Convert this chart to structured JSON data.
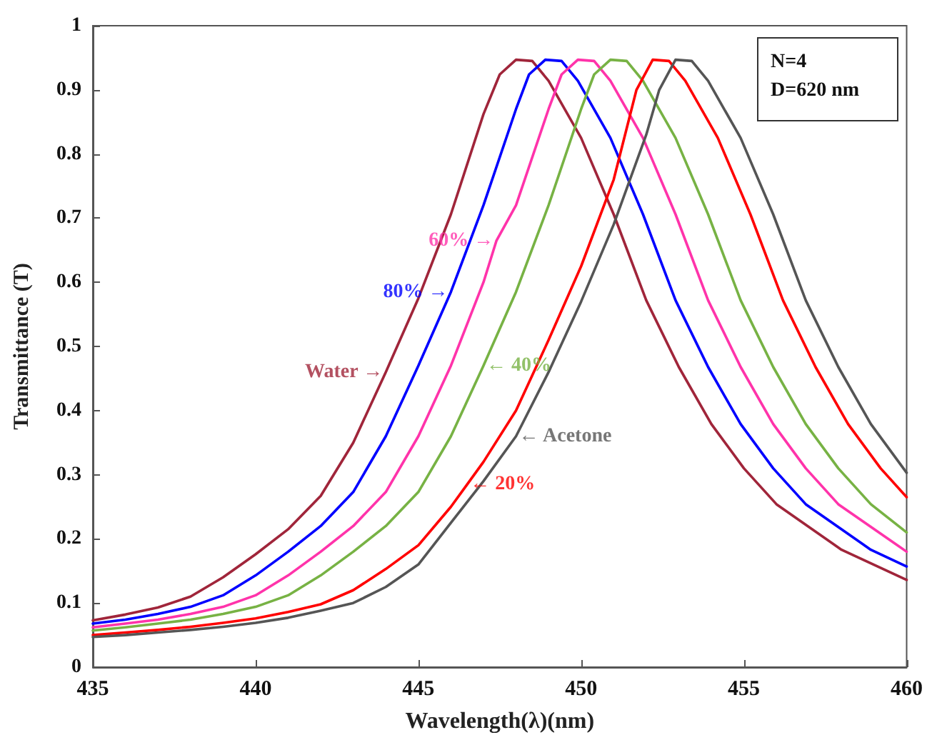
{
  "chart_data": {
    "type": "line",
    "xlabel": "Wavelength(λ)(nm)",
    "ylabel": "Transmittance (T)",
    "xlim": [
      435,
      460
    ],
    "xticks": [
      435,
      440,
      445,
      450,
      455,
      460
    ],
    "ylim": [
      0,
      1
    ],
    "yticks": [
      0,
      0.1,
      0.2,
      0.3,
      0.4,
      0.5,
      0.6,
      0.7,
      0.8,
      0.9,
      1
    ],
    "marker": "none",
    "line_style": "solid",
    "series": [
      {
        "color": "#a0253a",
        "x": [
          435,
          436,
          437,
          438,
          439,
          440,
          441,
          442,
          443,
          444,
          445,
          446,
          447,
          447.5,
          448,
          448.5,
          449,
          450,
          451,
          452,
          453,
          454,
          455,
          456,
          458,
          460
        ],
        "values": [
          0.073,
          0.082,
          0.093,
          0.11,
          0.14,
          0.176,
          0.215,
          0.267,
          0.35,
          0.46,
          0.575,
          0.706,
          0.862,
          0.924,
          0.947,
          0.945,
          0.914,
          0.825,
          0.706,
          0.572,
          0.468,
          0.379,
          0.31,
          0.254,
          0.183,
          0.136
        ]
      },
      {
        "color": "#0000ff",
        "x": [
          435,
          436,
          437,
          438,
          439,
          440,
          441,
          442,
          443,
          444,
          445,
          446,
          447,
          448,
          448.4,
          448.9,
          449.4,
          449.9,
          450.9,
          451.9,
          452.9,
          453.9,
          454.9,
          455.9,
          456.9,
          458.9,
          460
        ],
        "values": [
          0.068,
          0.074,
          0.083,
          0.094,
          0.112,
          0.143,
          0.18,
          0.22,
          0.273,
          0.36,
          0.47,
          0.585,
          0.72,
          0.87,
          0.924,
          0.947,
          0.945,
          0.914,
          0.825,
          0.706,
          0.572,
          0.468,
          0.379,
          0.31,
          0.254,
          0.183,
          0.157
        ]
      },
      {
        "color": "#ff33aa",
        "x": [
          435,
          436,
          437,
          438,
          439,
          440,
          441,
          442,
          443,
          444,
          445,
          446,
          447,
          447.4,
          448,
          449,
          449.4,
          449.9,
          450.4,
          450.9,
          451.9,
          452.9,
          453.9,
          454.9,
          455.9,
          456.9,
          457.9,
          460
        ],
        "values": [
          0.062,
          0.068,
          0.074,
          0.083,
          0.094,
          0.112,
          0.143,
          0.18,
          0.22,
          0.273,
          0.36,
          0.47,
          0.6,
          0.665,
          0.72,
          0.87,
          0.924,
          0.947,
          0.945,
          0.914,
          0.825,
          0.706,
          0.572,
          0.468,
          0.379,
          0.31,
          0.254,
          0.18
        ]
      },
      {
        "color": "#77b244",
        "x": [
          435,
          436,
          437,
          438,
          439,
          440,
          441,
          442,
          443,
          444,
          445,
          446,
          447,
          448,
          449,
          450,
          450.4,
          450.9,
          451.4,
          451.9,
          452.9,
          453.9,
          454.9,
          455.9,
          456.9,
          457.9,
          458.9,
          460
        ],
        "values": [
          0.057,
          0.062,
          0.068,
          0.074,
          0.083,
          0.094,
          0.112,
          0.143,
          0.18,
          0.22,
          0.273,
          0.36,
          0.47,
          0.585,
          0.72,
          0.87,
          0.924,
          0.947,
          0.945,
          0.914,
          0.825,
          0.706,
          0.572,
          0.468,
          0.379,
          0.31,
          0.254,
          0.21
        ]
      },
      {
        "color": "#ff0000",
        "x": [
          435,
          436,
          437,
          438,
          439,
          440,
          441,
          442,
          443,
          444,
          445,
          446,
          446.5,
          447,
          448,
          449,
          450,
          451,
          451.7,
          452.2,
          452.7,
          453.2,
          454.2,
          455.2,
          456.2,
          457.2,
          458.2,
          459.2,
          460
        ],
        "values": [
          0.05,
          0.054,
          0.058,
          0.063,
          0.069,
          0.076,
          0.086,
          0.098,
          0.12,
          0.153,
          0.19,
          0.25,
          0.285,
          0.32,
          0.4,
          0.51,
          0.625,
          0.76,
          0.9,
          0.947,
          0.945,
          0.914,
          0.825,
          0.706,
          0.572,
          0.468,
          0.379,
          0.31,
          0.265
        ]
      },
      {
        "color": "#555555",
        "x": [
          435,
          436,
          437,
          438,
          439,
          440,
          441,
          442,
          443,
          444,
          445,
          446,
          447,
          448,
          449,
          450,
          451,
          452,
          452.4,
          452.9,
          453.4,
          453.9,
          454.9,
          455.9,
          456.9,
          457.9,
          458.9,
          460
        ],
        "values": [
          0.047,
          0.05,
          0.054,
          0.058,
          0.063,
          0.069,
          0.077,
          0.088,
          0.1,
          0.125,
          0.16,
          0.225,
          0.29,
          0.36,
          0.46,
          0.57,
          0.69,
          0.83,
          0.9,
          0.947,
          0.945,
          0.914,
          0.825,
          0.706,
          0.572,
          0.468,
          0.379,
          0.303
        ]
      }
    ],
    "annotations": [
      {
        "text": "Water →",
        "x": 444,
        "y": 0.46
      },
      {
        "text": "80% →",
        "x": 446,
        "y": 0.585
      },
      {
        "text": "60% →",
        "x": 447.4,
        "y": 0.665
      },
      {
        "text": "← 40%",
        "x": 447,
        "y": 0.47
      },
      {
        "text": "← 20%",
        "x": 446.5,
        "y": 0.285
      },
      {
        "text": "← Acetone",
        "x": 448,
        "y": 0.36
      },
      "N=4",
      "D=620 nm"
    ]
  }
}
